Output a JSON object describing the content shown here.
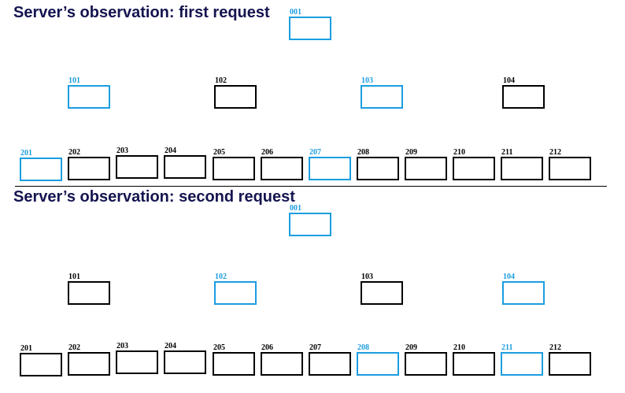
{
  "colors": {
    "highlight": "#1b9de0",
    "normal": "#000000",
    "title": "#141450"
  },
  "panels": [
    {
      "title": "Server’s observation: first request",
      "root": {
        "label": "001",
        "highlighted": true
      },
      "middle": [
        {
          "label": "101",
          "highlighted": true
        },
        {
          "label": "102",
          "highlighted": false
        },
        {
          "label": "103",
          "highlighted": true
        },
        {
          "label": "104",
          "highlighted": false
        }
      ],
      "leaves": [
        {
          "label": "201",
          "highlighted": true
        },
        {
          "label": "202",
          "highlighted": false
        },
        {
          "label": "203",
          "highlighted": false
        },
        {
          "label": "204",
          "highlighted": false
        },
        {
          "label": "205",
          "highlighted": false
        },
        {
          "label": "206",
          "highlighted": false
        },
        {
          "label": "207",
          "highlighted": true
        },
        {
          "label": "208",
          "highlighted": false
        },
        {
          "label": "209",
          "highlighted": false
        },
        {
          "label": "210",
          "highlighted": false
        },
        {
          "label": "211",
          "highlighted": false
        },
        {
          "label": "212",
          "highlighted": false
        }
      ]
    },
    {
      "title": "Server’s observation: second request",
      "root": {
        "label": "001",
        "highlighted": true
      },
      "middle": [
        {
          "label": "101",
          "highlighted": false
        },
        {
          "label": "102",
          "highlighted": true
        },
        {
          "label": "103",
          "highlighted": false
        },
        {
          "label": "104",
          "highlighted": true
        }
      ],
      "leaves": [
        {
          "label": "201",
          "highlighted": false
        },
        {
          "label": "202",
          "highlighted": false
        },
        {
          "label": "203",
          "highlighted": false
        },
        {
          "label": "204",
          "highlighted": false
        },
        {
          "label": "205",
          "highlighted": false
        },
        {
          "label": "206",
          "highlighted": false
        },
        {
          "label": "207",
          "highlighted": false
        },
        {
          "label": "208",
          "highlighted": true
        },
        {
          "label": "209",
          "highlighted": false
        },
        {
          "label": "210",
          "highlighted": false
        },
        {
          "label": "211",
          "highlighted": true
        },
        {
          "label": "212",
          "highlighted": false
        }
      ]
    }
  ]
}
